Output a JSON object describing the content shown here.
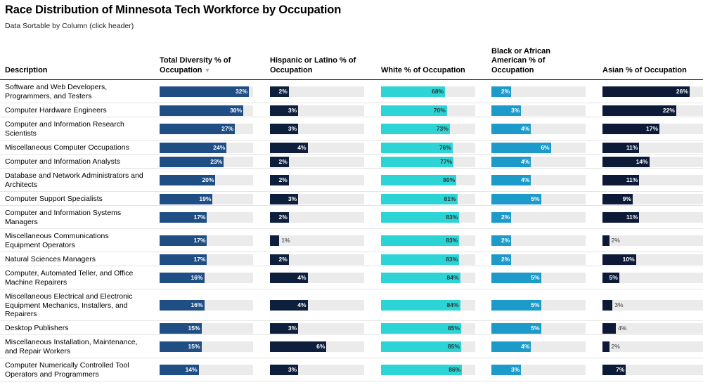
{
  "title": "Race Distribution of Minnesota Tech Workforce by Occupation",
  "subtitle": "Data Sortable by Column (click header)",
  "colors": {
    "total": "#1f4e85",
    "hispanic": "#0e1e3d",
    "white": "#2dd4d6",
    "black": "#1c9bca",
    "asian": "#0c1a38",
    "track": "#ebebeb"
  },
  "chart_data": {
    "type": "table",
    "columns": [
      {
        "key": "description",
        "label": "Description"
      },
      {
        "key": "total",
        "label": "Total Diversity % of Occupation",
        "sorted": "desc",
        "sort_icon": "sort-down-icon"
      },
      {
        "key": "hispanic",
        "label": "Hispanic or Latino % of Occupation"
      },
      {
        "key": "white",
        "label": "White % of Occupation"
      },
      {
        "key": "black",
        "label": "Black or African American % of Occupation"
      },
      {
        "key": "asian",
        "label": "Asian % of Occupation"
      }
    ],
    "rows": [
      {
        "description": "Software and Web Developers, Programmers, and Testers",
        "total": 32,
        "hispanic": 2,
        "white": 68,
        "black": 2,
        "asian": 26
      },
      {
        "description": "Computer Hardware Engineers",
        "total": 30,
        "hispanic": 3,
        "white": 70,
        "black": 3,
        "asian": 22
      },
      {
        "description": "Computer and Information Research Scientists",
        "total": 27,
        "hispanic": 3,
        "white": 73,
        "black": 4,
        "asian": 17
      },
      {
        "description": "Miscellaneous Computer Occupations",
        "total": 24,
        "hispanic": 4,
        "white": 76,
        "black": 6,
        "asian": 11
      },
      {
        "description": "Computer and Information Analysts",
        "total": 23,
        "hispanic": 2,
        "white": 77,
        "black": 4,
        "asian": 14
      },
      {
        "description": "Database and Network Administrators and Architects",
        "total": 20,
        "hispanic": 2,
        "white": 80,
        "black": 4,
        "asian": 11
      },
      {
        "description": "Computer Support Specialists",
        "total": 19,
        "hispanic": 3,
        "white": 81,
        "black": 5,
        "asian": 9
      },
      {
        "description": "Computer and Information Systems Managers",
        "total": 17,
        "hispanic": 2,
        "white": 83,
        "black": 2,
        "asian": 11
      },
      {
        "description": "Miscellaneous Communications Equipment Operators",
        "total": 17,
        "hispanic": 1,
        "white": 83,
        "black": 2,
        "asian": 2
      },
      {
        "description": "Natural Sciences Managers",
        "total": 17,
        "hispanic": 2,
        "white": 83,
        "black": 2,
        "asian": 10
      },
      {
        "description": "Computer, Automated Teller, and Office Machine Repairers",
        "total": 16,
        "hispanic": 4,
        "white": 84,
        "black": 5,
        "asian": 5
      },
      {
        "description": "Miscellaneous Electrical and Electronic Equipment Mechanics, Installers, and Repairers",
        "total": 16,
        "hispanic": 4,
        "white": 84,
        "black": 5,
        "asian": 3
      },
      {
        "description": "Desktop Publishers",
        "total": 15,
        "hispanic": 3,
        "white": 85,
        "black": 5,
        "asian": 4
      },
      {
        "description": "Miscellaneous Installation, Maintenance, and Repair Workers",
        "total": 15,
        "hispanic": 6,
        "white": 85,
        "black": 4,
        "asian": 2
      },
      {
        "description": "Computer Numerically Controlled Tool Operators and Programmers",
        "total": 14,
        "hispanic": 3,
        "white": 86,
        "black": 3,
        "asian": 7
      }
    ]
  }
}
